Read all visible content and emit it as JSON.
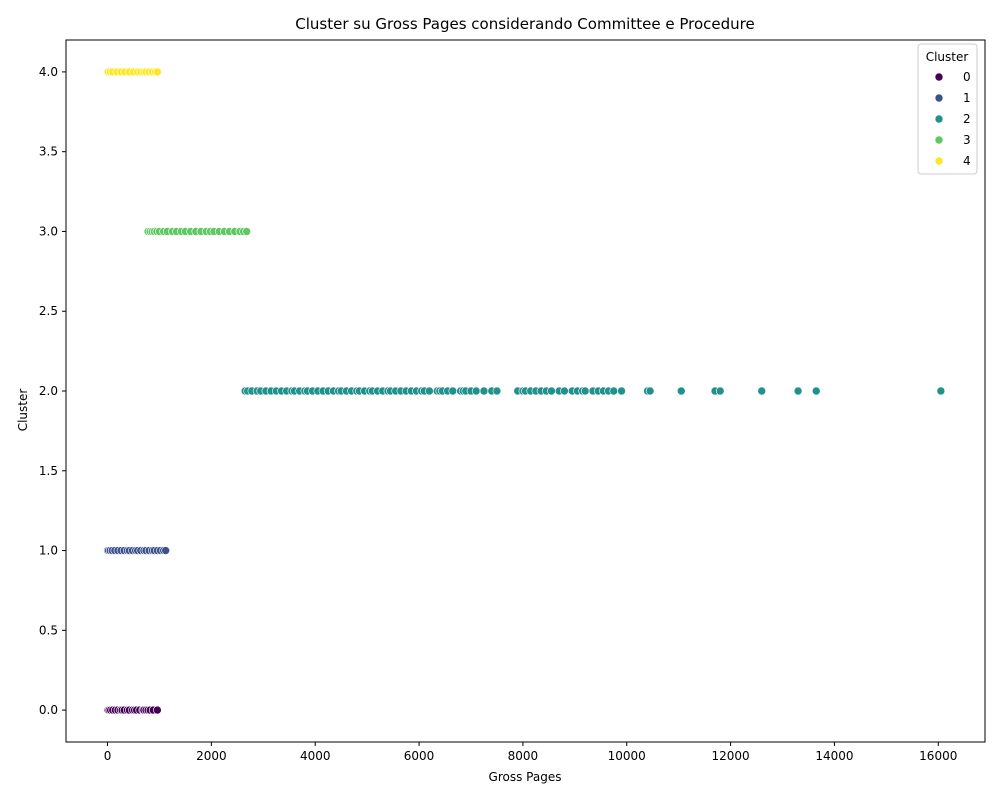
{
  "chart_data": {
    "type": "scatter",
    "title": "Cluster su Gross Pages considerando Committee e Procedure",
    "xlabel": "Gross Pages",
    "ylabel": "Cluster",
    "xlim": [
      -800,
      16900
    ],
    "ylim": [
      -0.2,
      4.2
    ],
    "x_ticks": [
      0,
      2000,
      4000,
      6000,
      8000,
      10000,
      12000,
      14000,
      16000
    ],
    "x_tick_labels": [
      "0",
      "2000",
      "4000",
      "6000",
      "8000",
      "10000",
      "12000",
      "14000",
      "16000"
    ],
    "y_ticks": [
      0.0,
      0.5,
      1.0,
      1.5,
      2.0,
      2.5,
      3.0,
      3.5,
      4.0
    ],
    "y_tick_labels": [
      "0.0",
      "0.5",
      "1.0",
      "1.5",
      "2.0",
      "2.5",
      "3.0",
      "3.5",
      "4.0"
    ],
    "grid": false,
    "legend": {
      "title": "Cluster",
      "placement": "upper right",
      "entries": [
        {
          "label": "0",
          "color": "#440154"
        },
        {
          "label": "1",
          "color": "#3b528b"
        },
        {
          "label": "2",
          "color": "#21918c"
        },
        {
          "label": "3",
          "color": "#5ec962"
        },
        {
          "label": "4",
          "color": "#fde725"
        }
      ]
    },
    "series": [
      {
        "name": "0",
        "color": "#440154",
        "y": 0,
        "x": [
          0,
          10,
          30,
          60,
          100,
          150,
          200,
          250,
          280,
          320,
          380,
          420,
          480,
          520,
          560,
          620,
          680,
          700,
          740,
          780,
          820,
          880,
          960
        ]
      },
      {
        "name": "1",
        "color": "#3b528b",
        "y": 1,
        "x": [
          0,
          20,
          50,
          90,
          140,
          200,
          260,
          320,
          380,
          420,
          480,
          540,
          580,
          640,
          700,
          740,
          800,
          860,
          900,
          960,
          1020,
          1080,
          1120
        ]
      },
      {
        "name": "2",
        "color": "#21918c",
        "y": 2,
        "x": [
          2650,
          2700,
          2780,
          2880,
          2950,
          3050,
          3150,
          3250,
          3350,
          3450,
          3550,
          3600,
          3700,
          3800,
          3850,
          3950,
          4050,
          4150,
          4250,
          4350,
          4450,
          4500,
          4600,
          4700,
          4800,
          4850,
          4950,
          5050,
          5100,
          5200,
          5300,
          5400,
          5450,
          5550,
          5650,
          5750,
          5850,
          5950,
          6050,
          6100,
          6200,
          6350,
          6400,
          6450,
          6550,
          6650,
          6800,
          6850,
          6900,
          7000,
          7100,
          7250,
          7400,
          7500,
          7900,
          8000,
          8050,
          8150,
          8250,
          8350,
          8450,
          8550,
          8700,
          8800,
          8950,
          9050,
          9150,
          9200,
          9350,
          9450,
          9550,
          9650,
          9750,
          9900,
          10400,
          10450,
          11050,
          11700,
          11800,
          12600,
          13300,
          13650,
          16050
        ]
      },
      {
        "name": "3",
        "color": "#5ec962",
        "y": 3,
        "x": [
          780,
          820,
          860,
          900,
          950,
          1000,
          1080,
          1150,
          1250,
          1330,
          1420,
          1500,
          1600,
          1700,
          1800,
          1900,
          1980,
          2050,
          2150,
          2250,
          2350,
          2450,
          2550,
          2620,
          2680
        ]
      },
      {
        "name": "4",
        "color": "#fde725",
        "y": 4,
        "x": [
          10,
          50,
          100,
          180,
          260,
          330,
          420,
          500,
          580,
          640,
          700,
          740,
          800,
          860,
          920,
          960
        ]
      }
    ]
  }
}
